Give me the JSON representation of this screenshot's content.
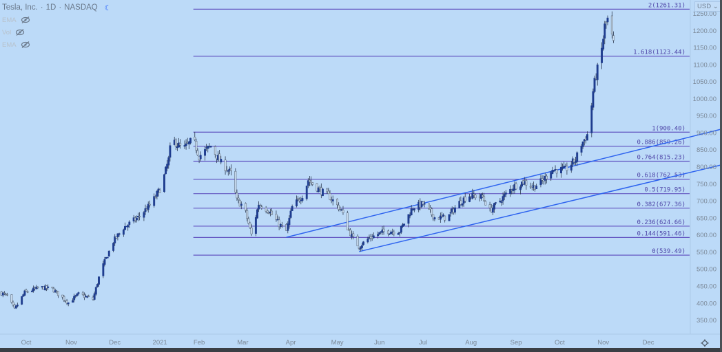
{
  "header": {
    "symbol": "Tesla, Inc.",
    "interval": "1D",
    "exchange": "NASDAQ",
    "separator": "·",
    "indicators": [
      {
        "label": "EMA",
        "icon": "eye-off-icon"
      },
      {
        "label": "Vol",
        "icon": "eye-off-icon"
      },
      {
        "label": "EMA",
        "icon": "eye-off-icon"
      }
    ],
    "currency": "USD"
  },
  "colors": {
    "background": "#bcdaf8",
    "up_candle": "#1f3d8f",
    "down_candle": "#c9dcf0",
    "wick": "#2b3850",
    "fib_line": "#6457c2",
    "channel_line": "#2d63ef",
    "axis_text": "#7a8796"
  },
  "chart_data": {
    "type": "candlestick",
    "title": "Tesla, Inc. 1D NASDAQ",
    "ylim": [
      325,
      1275
    ],
    "y_ticks": [
      "1250.00",
      "1200.00",
      "1150.00",
      "1100.00",
      "1050.00",
      "1000.00",
      "950.00",
      "900.00",
      "850.00",
      "800.00",
      "750.00",
      "700.00",
      "650.00",
      "600.00",
      "550.00",
      "500.00",
      "450.00",
      "400.00",
      "350.00"
    ],
    "x_ticks": [
      {
        "label": "Oct",
        "date": "2020-10-01"
      },
      {
        "label": "Nov",
        "date": "2020-11-01"
      },
      {
        "label": "Dec",
        "date": "2020-12-01"
      },
      {
        "label": "2021",
        "date": "2021-01-01"
      },
      {
        "label": "Feb",
        "date": "2021-01-28"
      },
      {
        "label": "Mar",
        "date": "2021-02-27"
      },
      {
        "label": "Apr",
        "date": "2021-04-01"
      },
      {
        "label": "May",
        "date": "2021-05-03"
      },
      {
        "label": "Jun",
        "date": "2021-06-01"
      },
      {
        "label": "Jul",
        "date": "2021-07-01"
      },
      {
        "label": "Aug",
        "date": "2021-08-03"
      },
      {
        "label": "Sep",
        "date": "2021-09-03"
      },
      {
        "label": "Oct",
        "date": "2021-10-03"
      },
      {
        "label": "Nov",
        "date": "2021-11-02"
      },
      {
        "label": "Dec",
        "date": "2021-12-03"
      }
    ],
    "price_path": [
      [
        "2020-09-13",
        430
      ],
      [
        "2020-09-18",
        420
      ],
      [
        "2020-09-23",
        380
      ],
      [
        "2020-09-30",
        430
      ],
      [
        "2020-10-11",
        445
      ],
      [
        "2020-10-19",
        440
      ],
      [
        "2020-10-30",
        400
      ],
      [
        "2020-11-06",
        425
      ],
      [
        "2020-11-16",
        410
      ],
      [
        "2020-11-21",
        490
      ],
      [
        "2020-11-30",
        580
      ],
      [
        "2020-12-07",
        620
      ],
      [
        "2020-12-17",
        650
      ],
      [
        "2020-12-26",
        690
      ],
      [
        "2021-01-02",
        740
      ],
      [
        "2021-01-07",
        820
      ],
      [
        "2021-01-09",
        880
      ],
      [
        "2021-01-17",
        850
      ],
      [
        "2021-01-24",
        880
      ],
      [
        "2021-01-28",
        830
      ],
      [
        "2021-02-05",
        860
      ],
      [
        "2021-02-12",
        810
      ],
      [
        "2021-02-19",
        780
      ],
      [
        "2021-02-23",
        700
      ],
      [
        "2021-02-28",
        680
      ],
      [
        "2021-03-05",
        600
      ],
      [
        "2021-03-10",
        690
      ],
      [
        "2021-03-17",
        670
      ],
      [
        "2021-03-24",
        630
      ],
      [
        "2021-03-29",
        610
      ],
      [
        "2021-04-02",
        680
      ],
      [
        "2021-04-10",
        720
      ],
      [
        "2021-04-13",
        760
      ],
      [
        "2021-04-21",
        730
      ],
      [
        "2021-04-28",
        710
      ],
      [
        "2021-05-06",
        670
      ],
      [
        "2021-05-10",
        620
      ],
      [
        "2021-05-15",
        580
      ],
      [
        "2021-05-18",
        565
      ],
      [
        "2021-05-25",
        590
      ],
      [
        "2021-06-05",
        610
      ],
      [
        "2021-06-15",
        610
      ],
      [
        "2021-06-24",
        680
      ],
      [
        "2021-07-01",
        690
      ],
      [
        "2021-07-09",
        650
      ],
      [
        "2021-07-18",
        650
      ],
      [
        "2021-07-25",
        690
      ],
      [
        "2021-08-01",
        715
      ],
      [
        "2021-08-11",
        710
      ],
      [
        "2021-08-16",
        670
      ],
      [
        "2021-08-23",
        700
      ],
      [
        "2021-09-01",
        740
      ],
      [
        "2021-09-08",
        755
      ],
      [
        "2021-09-15",
        740
      ],
      [
        "2021-09-22",
        760
      ],
      [
        "2021-09-27",
        790
      ],
      [
        "2021-10-07",
        790
      ],
      [
        "2021-10-14",
        820
      ],
      [
        "2021-10-18",
        865
      ],
      [
        "2021-10-23",
        900
      ],
      [
        "2021-10-26",
        1020
      ],
      [
        "2021-10-28",
        1070
      ],
      [
        "2021-10-31",
        1110
      ],
      [
        "2021-11-03",
        1210
      ],
      [
        "2021-11-05",
        1230
      ],
      [
        "2021-11-09",
        1160
      ]
    ],
    "fibonacci": {
      "start_date": "2021-01-24",
      "levels": [
        {
          "label": "2(1261.31)",
          "price": 1261.31
        },
        {
          "label": "1.618(1123.44)",
          "price": 1123.44
        },
        {
          "label": "1(900.40)",
          "price": 900.4
        },
        {
          "label": "0.886(859.26)",
          "price": 859.26
        },
        {
          "label": "0.764(815.23)",
          "price": 815.23
        },
        {
          "label": "0.618(762.53)",
          "price": 762.53
        },
        {
          "label": "0.5(719.95)",
          "price": 719.95
        },
        {
          "label": "0.382(677.36)",
          "price": 677.36
        },
        {
          "label": "0.236(624.66)",
          "price": 624.66
        },
        {
          "label": "0.144(591.46)",
          "price": 591.46
        },
        {
          "label": "0(539.49)",
          "price": 539.49
        }
      ]
    },
    "trendlines": [
      {
        "name": "upper-channel",
        "from": [
          "2021-03-29",
          592
        ],
        "to": [
          "2022-01-22",
          909
        ]
      },
      {
        "name": "lower-channel",
        "from": [
          "2021-05-18",
          550
        ],
        "to": [
          "2022-01-22",
          804
        ]
      }
    ]
  }
}
